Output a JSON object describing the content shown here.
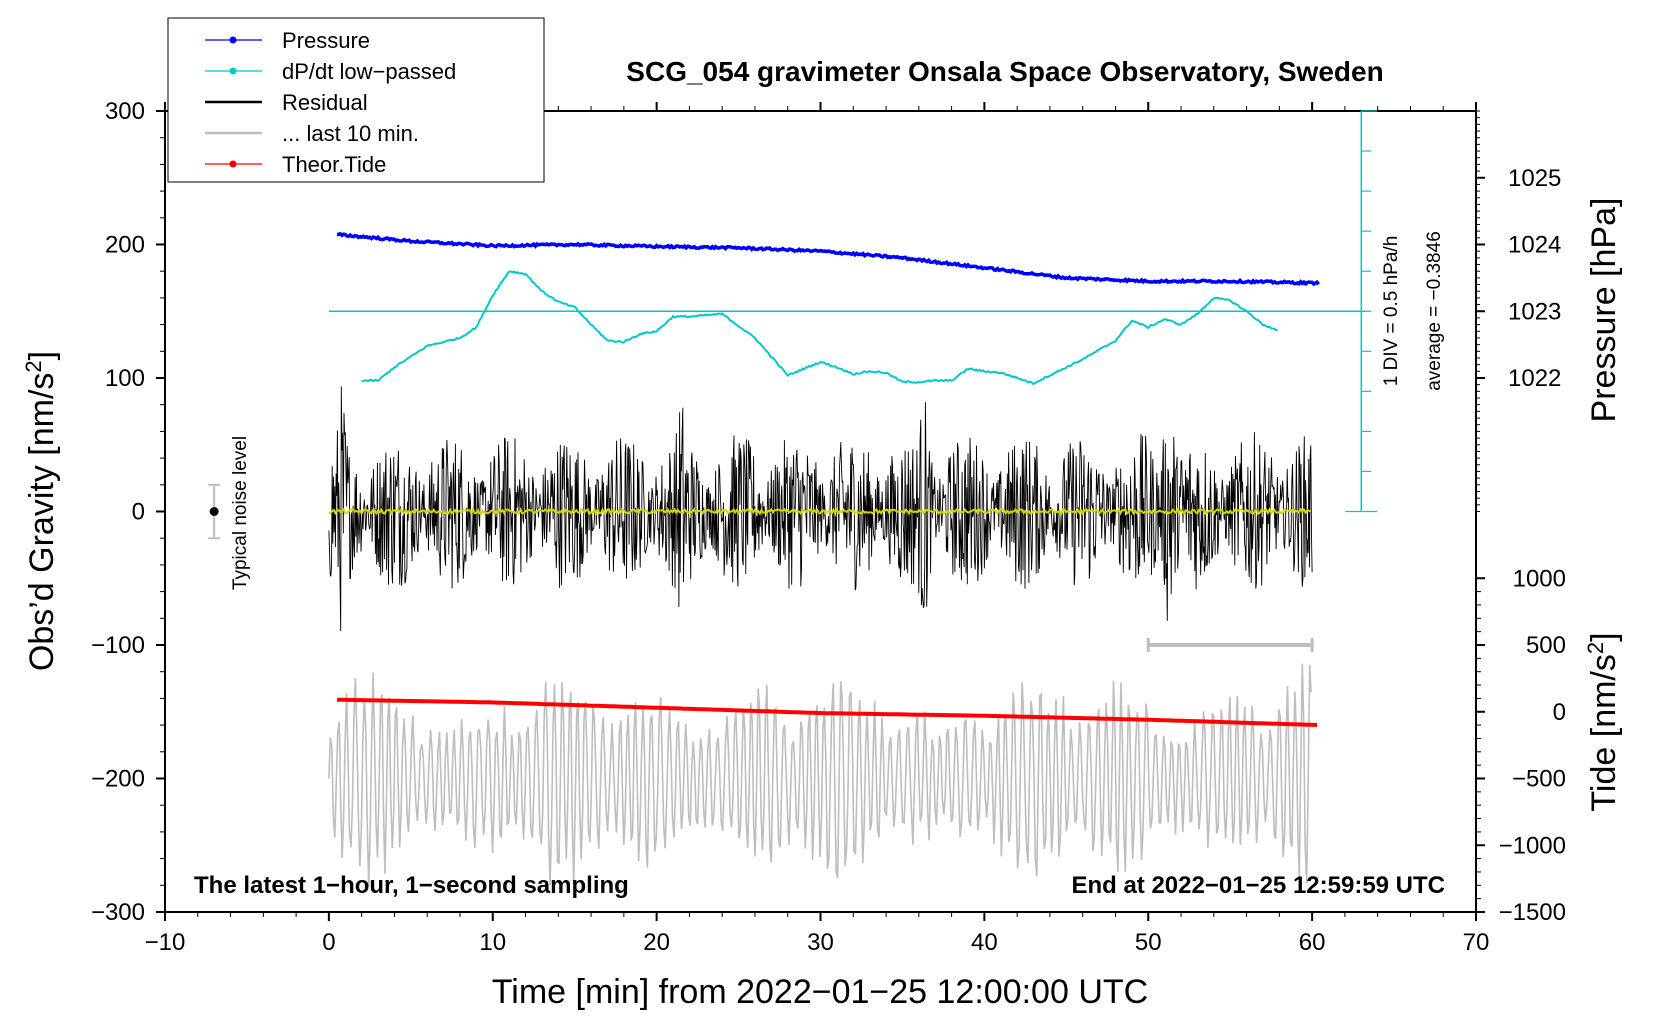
{
  "chart_data": {
    "type": "line",
    "title": "SCG_054 gravimeter Onsala Space Observatory, Sweden",
    "xlabel": "Time [min] from 2022−01−25 12:00:00 UTC",
    "ylabel_left": "Obs’d Gravity [nm/s",
    "ylabel_left_sup": "2",
    "ylabel_left_close": "]",
    "ylabel_right_pressure": "Pressure [hPa]",
    "ylabel_right_tide": "Tide [nm/s",
    "ylabel_right_tide_sup": "2",
    "ylabel_right_tide_close": "]",
    "xlim": [
      -10,
      70
    ],
    "ylim_left": [
      -300,
      300
    ],
    "x_ticks": [
      -10,
      0,
      10,
      20,
      30,
      40,
      50,
      60,
      70
    ],
    "x_tick_labels": [
      "−10",
      "0",
      "10",
      "20",
      "30",
      "40",
      "50",
      "60",
      "70"
    ],
    "y_ticks_left": [
      300,
      200,
      100,
      0,
      -100,
      -200,
      -300
    ],
    "y_tick_labels_left": [
      "300",
      "200",
      "100",
      "0",
      "−100",
      "−200",
      "−300"
    ],
    "pressure_ticks": [
      1025,
      1024,
      1023,
      1022
    ],
    "pressure_tick_labels": [
      "1025",
      "1024",
      "1023",
      "1022"
    ],
    "pressure_axis": {
      "value_at_gravity_0": 1020,
      "value_at_gravity_300": 1026
    },
    "tide_ticks": [
      1000,
      500,
      0,
      -500,
      -1000,
      -1500
    ],
    "tide_tick_labels": [
      "1000",
      "500",
      "0",
      "−500",
      "−1000",
      "−1500"
    ],
    "tide_axis": {
      "value_at_gravity_-300": -1500,
      "value_at_gravity_-150": 0
    },
    "legend": [
      {
        "label": "Pressure",
        "color": "#0000ff",
        "marker": true
      },
      {
        "label": "dP/dt low−passed",
        "color": "#00c8c8",
        "marker": true
      },
      {
        "label": "Residual",
        "color": "#000000",
        "marker": false
      },
      {
        "label": "... last 10 min.",
        "color": "#bebebe",
        "marker": false
      },
      {
        "label": "Theor.Tide",
        "color": "#ff0000",
        "marker": true
      }
    ],
    "series": [
      {
        "name": "Pressure",
        "color": "#0000ff",
        "units": "hPa",
        "x": [
          0.5,
          5,
          10,
          15,
          20,
          25,
          30,
          35,
          40,
          45,
          50,
          55,
          60.5
        ],
        "values": [
          1024.15,
          1024.05,
          1023.98,
          1024.0,
          1023.97,
          1023.95,
          1023.9,
          1023.8,
          1023.65,
          1023.5,
          1023.45,
          1023.45,
          1023.42
        ]
      },
      {
        "name": "dP/dt low−passed",
        "color": "#00c8c8",
        "units": "gravity-axis nm/s2",
        "x": [
          2,
          3,
          4,
          6,
          8,
          9,
          10,
          11,
          12,
          13,
          14,
          15,
          16,
          17,
          18,
          19,
          20,
          21,
          22,
          24,
          26,
          28,
          30,
          31,
          32,
          33,
          34,
          35,
          36,
          37,
          38,
          39,
          40,
          41,
          42,
          43,
          44,
          46,
          48,
          49,
          50,
          51,
          52,
          53,
          54,
          55,
          56,
          57,
          58
        ],
        "values": [
          98,
          98,
          108,
          124,
          130,
          138,
          162,
          180,
          178,
          165,
          157,
          153,
          140,
          128,
          127,
          133,
          135,
          146,
          146,
          148,
          130,
          102,
          112,
          108,
          103,
          105,
          104,
          97,
          97,
          98,
          98,
          107,
          105,
          104,
          100,
          96,
          102,
          114,
          128,
          143,
          138,
          144,
          140,
          148,
          160,
          158,
          150,
          140,
          135
        ]
      },
      {
        "name": "Residual",
        "color": "#000000",
        "units": "nm/s2",
        "x_range": [
          0,
          60
        ],
        "approx_amplitude": 60,
        "burst_peaks": [
          {
            "x": 0.8,
            "amp": 105
          },
          {
            "x": 21.5,
            "amp": 100
          },
          {
            "x": 36.3,
            "amp": 100
          },
          {
            "x": 51.3,
            "amp": 105
          }
        ]
      },
      {
        "name": "Residual running mean",
        "color": "#d4d400",
        "units": "nm/s2",
        "x_range": [
          0,
          60
        ],
        "approx_value": 0
      },
      {
        "name": "... last 10 min.",
        "color": "#bebebe",
        "units": "nm/s2 (x-scale 6x, offset -200)",
        "x_range": [
          0,
          60
        ],
        "center": -200,
        "approx_amplitude": 75
      },
      {
        "name": "Theor.Tide",
        "color": "#ff0000",
        "units": "nm/s2 tide",
        "x": [
          0.5,
          10,
          20,
          30,
          40,
          50,
          60.5
        ],
        "values": [
          90,
          70,
          30,
          -10,
          -30,
          -60,
          -100
        ]
      }
    ],
    "annotations": {
      "bottom_left": "The latest 1−hour, 1−second sampling",
      "bottom_right": "End at 2022−01−25 12:59:59 UTC",
      "noise_label": "Typical noise level",
      "noise_bar": {
        "x": -7,
        "center": 0,
        "half_range": 20
      },
      "div_label": "1 DIV = 0.5 hPa/h",
      "average_label": "average = −0.3846",
      "average_line_value": 150,
      "last10_bracket": {
        "x_from": 50,
        "x_to": 60,
        "y": -100
      },
      "div_scale": {
        "x": 63,
        "from": 0,
        "to": 300,
        "step": 30
      }
    }
  }
}
